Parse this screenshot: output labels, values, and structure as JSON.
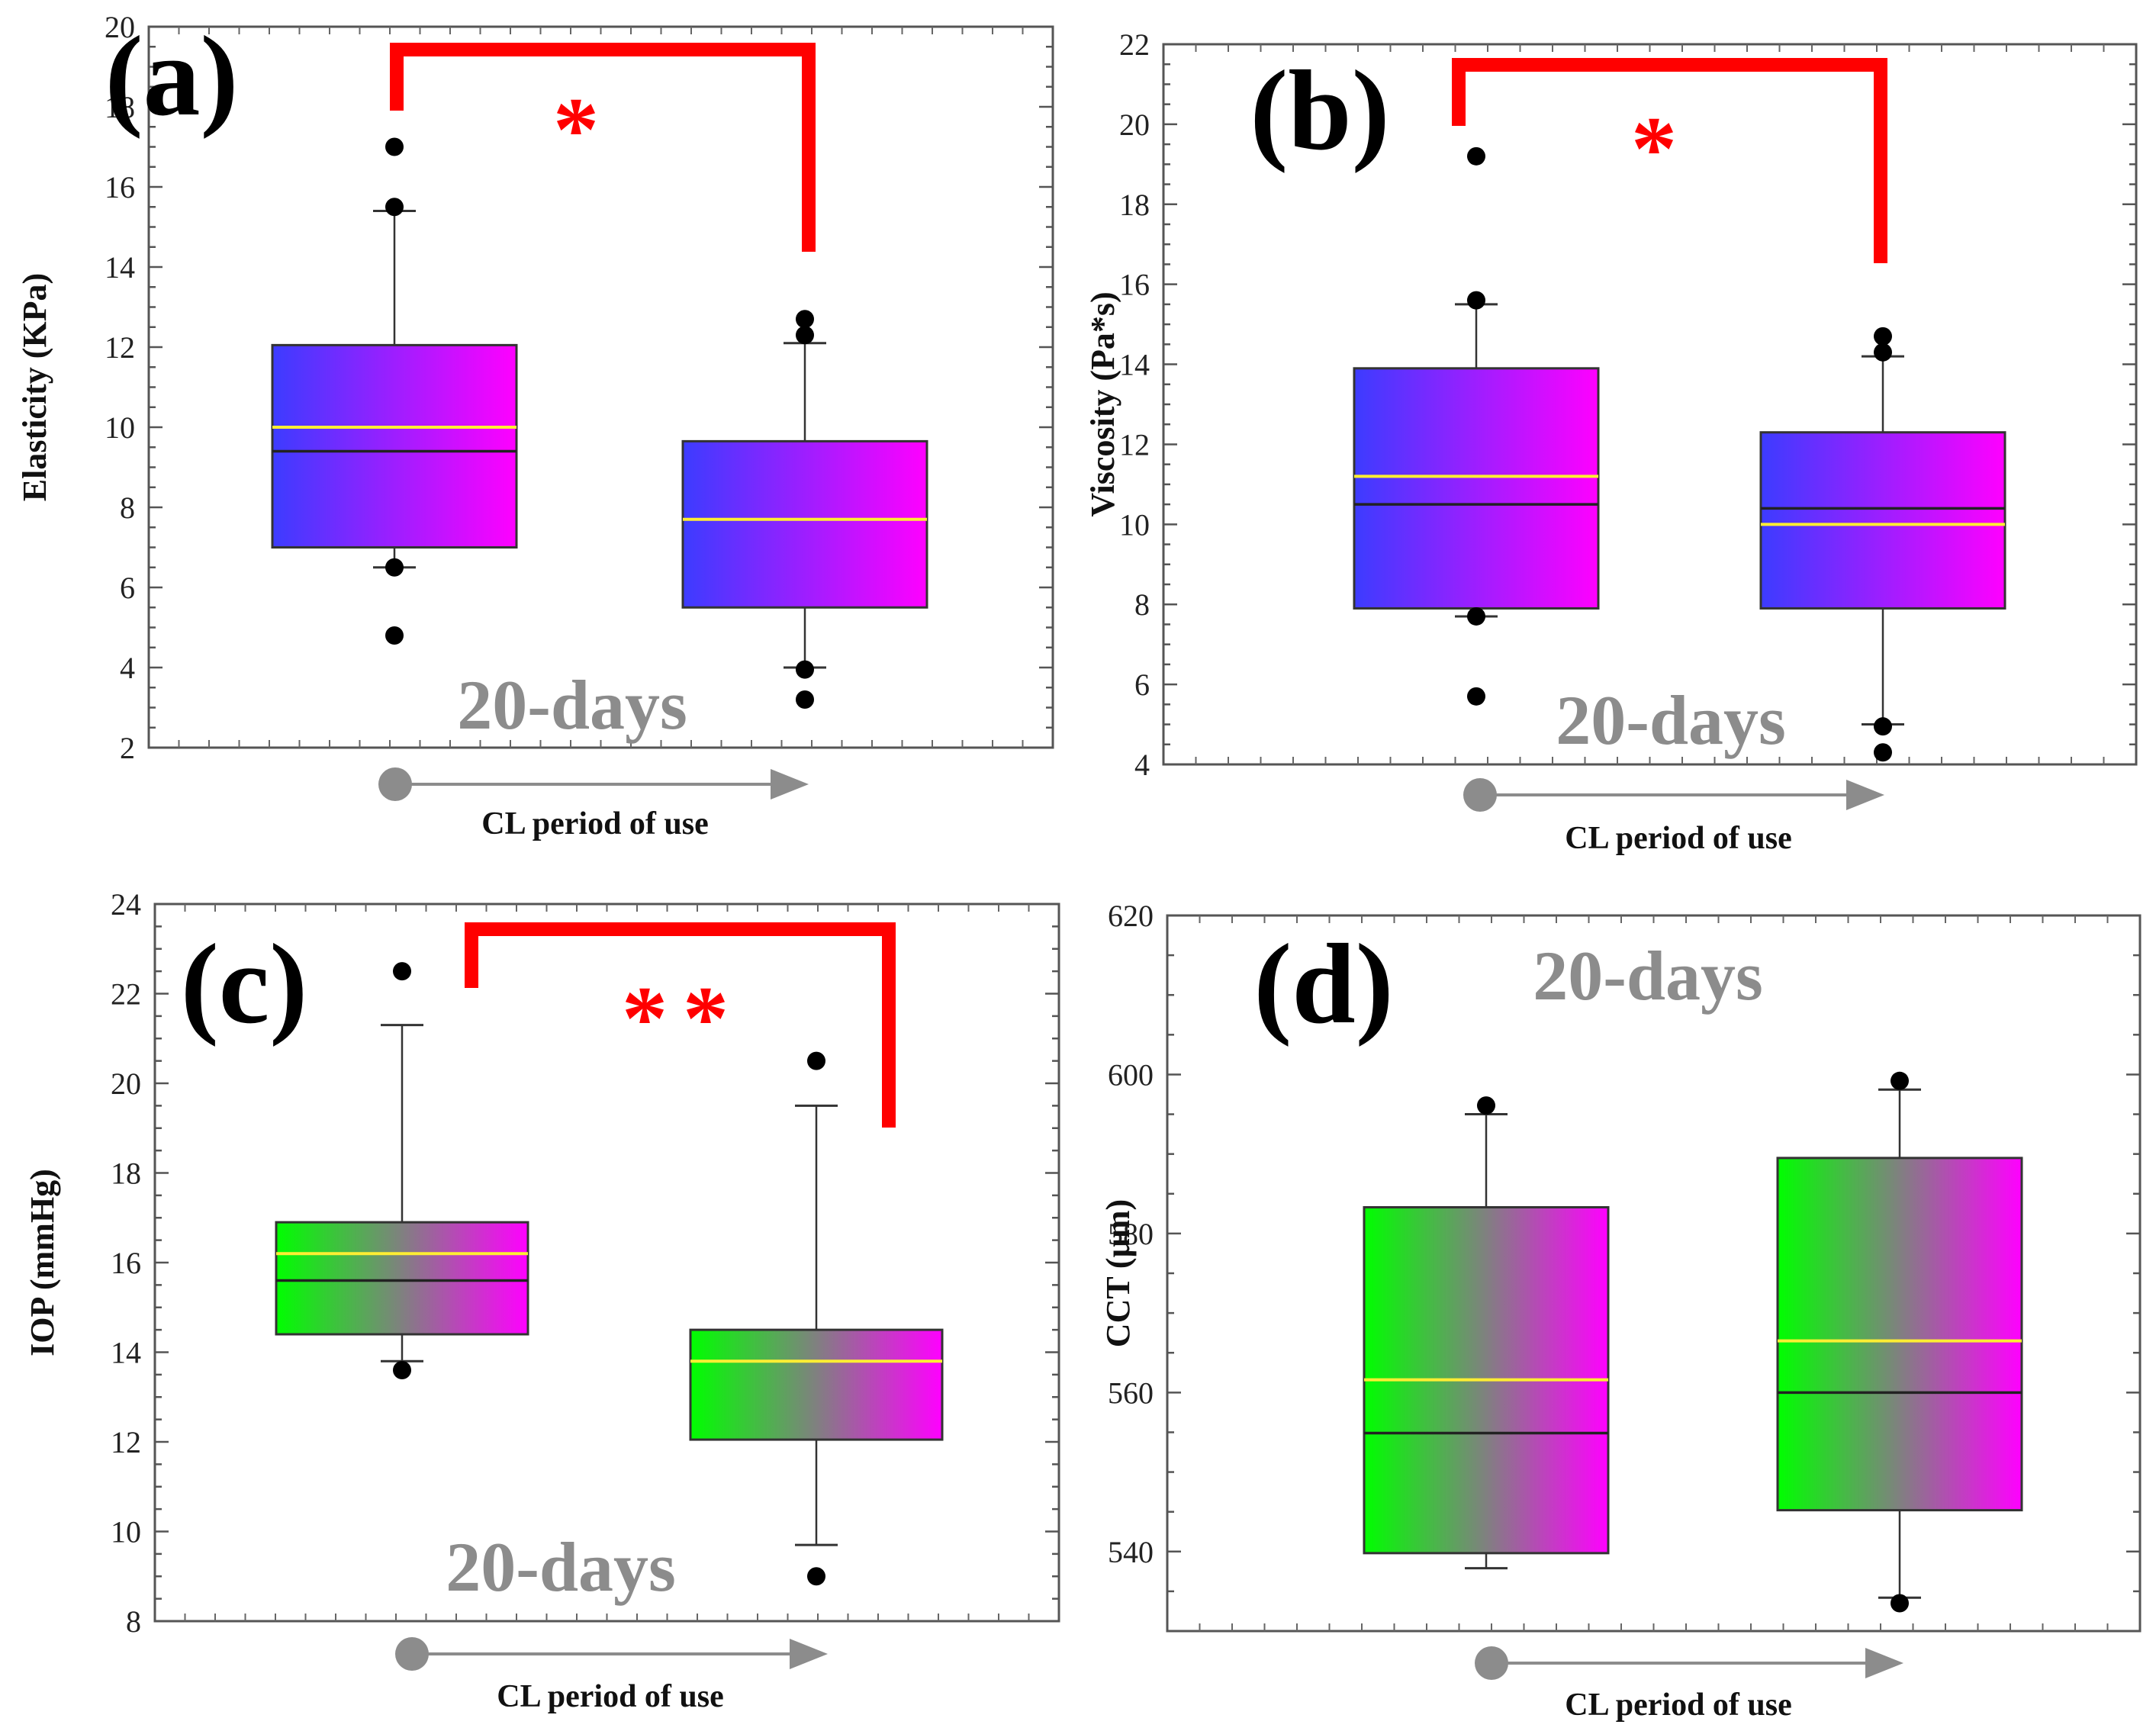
{
  "chart_data": [
    {
      "id": "a",
      "type": "box",
      "panel_label": "(a)",
      "ylabel": "Elasticity (KPa)",
      "xlabel": "CL period of use",
      "period_label": "20-days",
      "significance": "*",
      "ylim": [
        2,
        20
      ],
      "yticks": [
        2,
        4,
        6,
        8,
        10,
        12,
        14,
        16,
        18,
        20
      ],
      "gradient": [
        "#3c3cff",
        "#ff00ff"
      ],
      "boxes": [
        {
          "q1": 7.0,
          "median": 9.4,
          "mean": 10.0,
          "q3": 12.05,
          "whisker_low": 6.5,
          "whisker_high": 15.4,
          "outliers": [
            4.8,
            6.5,
            15.5,
            17.0
          ]
        },
        {
          "q1": 5.5,
          "median": 7.7,
          "mean": 7.7,
          "q3": 9.65,
          "whisker_low": 4.0,
          "whisker_high": 12.1,
          "outliers": [
            3.2,
            3.95,
            12.3,
            12.7
          ]
        }
      ]
    },
    {
      "id": "b",
      "type": "box",
      "panel_label": "(b)",
      "ylabel": "Viscosity (Pa*s)",
      "xlabel": "CL period of use",
      "period_label": "20-days",
      "significance": "*",
      "ylim": [
        4,
        22
      ],
      "yticks": [
        4,
        6,
        8,
        10,
        12,
        14,
        16,
        18,
        20,
        22
      ],
      "gradient": [
        "#3c3cff",
        "#ff00ff"
      ],
      "boxes": [
        {
          "q1": 7.9,
          "median": 10.5,
          "mean": 11.2,
          "q3": 13.9,
          "whisker_low": 7.7,
          "whisker_high": 15.5,
          "outliers": [
            5.7,
            7.7,
            15.6,
            19.2
          ]
        },
        {
          "q1": 7.9,
          "median": 10.4,
          "mean": 10.0,
          "q3": 12.3,
          "whisker_low": 5.0,
          "whisker_high": 14.2,
          "outliers": [
            4.3,
            4.95,
            14.3,
            14.7
          ]
        }
      ]
    },
    {
      "id": "c",
      "type": "box",
      "panel_label": "(c)",
      "ylabel": "IOP (mmHg)",
      "xlabel": "CL period of use",
      "period_label": "20-days",
      "significance": "**",
      "ylim": [
        8,
        24
      ],
      "yticks": [
        8,
        10,
        12,
        14,
        16,
        18,
        20,
        22,
        24
      ],
      "gradient": [
        "#00ff00",
        "#808080",
        "#ff00ff"
      ],
      "boxes": [
        {
          "q1": 14.4,
          "median": 15.6,
          "mean": 16.2,
          "q3": 16.9,
          "whisker_low": 13.8,
          "whisker_high": 21.3,
          "outliers": [
            13.6,
            22.5
          ]
        },
        {
          "q1": 12.05,
          "median": 13.8,
          "mean": 13.8,
          "q3": 14.5,
          "whisker_low": 9.7,
          "whisker_high": 19.5,
          "outliers": [
            9.0,
            20.5
          ]
        }
      ]
    },
    {
      "id": "d",
      "type": "box",
      "panel_label": "(d)",
      "ylabel": "CCT (µm)",
      "xlabel": "CL period of use",
      "period_label": "20-days",
      "significance": "",
      "ylim": [
        530,
        620
      ],
      "yticks": [
        540,
        560,
        580,
        600,
        620
      ],
      "gradient": [
        "#00ff00",
        "#808080",
        "#ff00ff"
      ],
      "boxes": [
        {
          "q1": 539.8,
          "median": 554.9,
          "mean": 561.6,
          "q3": 583.3,
          "whisker_low": 537.9,
          "whisker_high": 595.0,
          "outliers": [
            596.1
          ]
        },
        {
          "q1": 545.2,
          "median": 560.0,
          "mean": 566.5,
          "q3": 589.5,
          "whisker_low": 534.2,
          "whisker_high": 598.1,
          "outliers": [
            533.5,
            599.2
          ]
        }
      ]
    }
  ]
}
